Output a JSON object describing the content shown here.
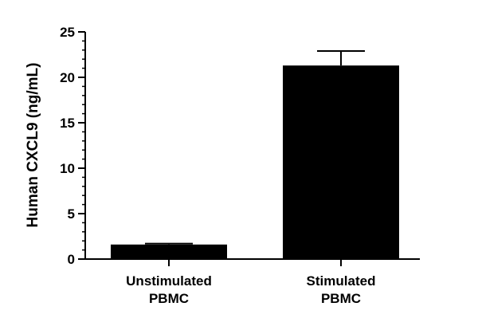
{
  "chart_data": {
    "type": "bar",
    "categories": [
      [
        "Unstimulated",
        "PBMC"
      ],
      [
        "Stimulated",
        "PBMC"
      ]
    ],
    "values": [
      1.6,
      21.3
    ],
    "error": [
      0.1,
      1.6
    ],
    "ylabel": "Human CXCL9 (ng/mL)",
    "xlabel": "",
    "title": "",
    "ylim": [
      0,
      25
    ],
    "yticks": [
      0,
      5,
      10,
      15,
      20,
      25
    ],
    "y_minor_step": 1,
    "grid": false,
    "legend": "none",
    "colors": {
      "bar": "#000000",
      "axis": "#000000"
    }
  }
}
